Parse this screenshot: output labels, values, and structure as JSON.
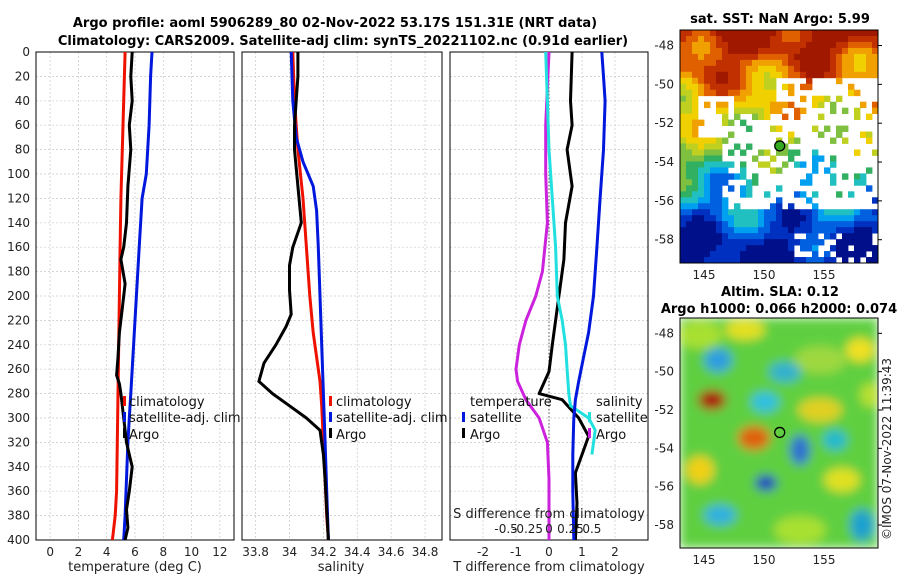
{
  "titles": {
    "line1": "Argo profile: aoml 5906289_80 02-Nov-2022 53.17S 151.31E (NRT data)",
    "line2": "Climatology: CARS2009. Satellite-adj clim: synTS_20221102.nc (0.91d earlier)"
  },
  "colors": {
    "climatology": "#ee1100",
    "satellite": "#0018dd",
    "argo": "#000000",
    "t_sat_diff": "#cc22dd",
    "s_sat_diff": "#22e0e0"
  },
  "chart_data": [
    {
      "type": "line",
      "id": "temperature",
      "xlabel": "temperature (deg C)",
      "xlim": [
        -1,
        13
      ],
      "ylim": [
        400,
        0
      ],
      "xticks": [
        0,
        2,
        4,
        6,
        8,
        10,
        12
      ],
      "yticks": [
        0,
        20,
        40,
        60,
        80,
        100,
        120,
        140,
        160,
        180,
        200,
        220,
        240,
        260,
        280,
        300,
        320,
        340,
        360,
        380,
        400
      ],
      "legend": [
        "climatology",
        "satellite-adj. clim",
        "Argo"
      ],
      "series": [
        {
          "name": "climatology",
          "color": "#ee1100",
          "x": [
            5.3,
            5.2,
            5.1,
            5.0,
            4.95,
            4.9,
            4.85,
            4.8,
            4.75,
            4.7,
            4.6,
            4.4
          ],
          "y": [
            0,
            40,
            80,
            120,
            160,
            200,
            240,
            280,
            320,
            360,
            380,
            400
          ]
        },
        {
          "name": "satellite-adj. clim",
          "color": "#0018dd",
          "x": [
            7.2,
            7.1,
            7.0,
            6.9,
            6.8,
            6.5,
            6.3,
            6.1,
            5.9,
            5.7,
            5.6,
            5.5,
            5.4,
            5.3,
            5.2
          ],
          "y": [
            0,
            20,
            60,
            80,
            100,
            120,
            160,
            200,
            240,
            280,
            300,
            320,
            350,
            380,
            400
          ]
        },
        {
          "name": "Argo",
          "color": "#000000",
          "x": [
            5.8,
            5.7,
            5.8,
            5.6,
            5.7,
            5.5,
            5.4,
            5.2,
            5.0,
            5.3,
            5.1,
            4.9,
            4.8,
            4.7,
            4.9,
            5.0,
            5.2,
            5.4,
            5.6,
            5.8,
            5.6,
            5.4,
            5.5,
            5.3
          ],
          "y": [
            0,
            20,
            40,
            60,
            80,
            110,
            140,
            160,
            170,
            190,
            210,
            230,
            250,
            265,
            272,
            280,
            300,
            320,
            330,
            340,
            360,
            375,
            390,
            400
          ]
        }
      ]
    },
    {
      "type": "line",
      "id": "salinity",
      "xlabel": "salinity",
      "xlim": [
        33.72,
        34.9
      ],
      "ylim": [
        400,
        0
      ],
      "xticks": [
        33.8,
        34,
        34.2,
        34.4,
        34.6,
        34.8
      ],
      "xticklabels": [
        "33.8",
        "34",
        "34.2",
        "34.4",
        "34.6",
        "34.8"
      ],
      "legend": [
        "climatology",
        "satellite-adj. clim",
        "Argo"
      ],
      "series": [
        {
          "name": "climatology",
          "color": "#ee1100",
          "x": [
            34.02,
            34.03,
            34.05,
            34.08,
            34.1,
            34.12,
            34.14,
            34.16,
            34.18,
            34.19,
            34.2,
            34.21,
            34.22,
            34.23
          ],
          "y": [
            0,
            40,
            80,
            120,
            160,
            200,
            230,
            250,
            270,
            290,
            320,
            350,
            380,
            400
          ]
        },
        {
          "name": "satellite-adj. clim",
          "color": "#0018dd",
          "x": [
            34.01,
            34.02,
            34.04,
            34.08,
            34.11,
            34.14,
            34.16,
            34.17,
            34.18,
            34.19,
            34.2,
            34.21,
            34.22,
            34.23
          ],
          "y": [
            0,
            40,
            70,
            90,
            100,
            110,
            130,
            160,
            200,
            240,
            280,
            320,
            360,
            400
          ]
        },
        {
          "name": "Argo",
          "color": "#000000",
          "x": [
            34.05,
            34.05,
            34.04,
            34.03,
            34.03,
            34.05,
            34.07,
            34.02,
            34.0,
            34.0,
            34.01,
            33.98,
            33.92,
            33.85,
            33.82,
            33.9,
            34.0,
            34.1,
            34.18,
            34.2,
            34.21,
            34.22,
            34.23
          ],
          "y": [
            0,
            20,
            40,
            60,
            80,
            110,
            140,
            160,
            175,
            195,
            215,
            225,
            240,
            255,
            270,
            280,
            290,
            300,
            310,
            330,
            350,
            375,
            400
          ]
        }
      ]
    },
    {
      "type": "line",
      "id": "difference",
      "xlabel": "T difference from climatology",
      "xlabel_top": "S difference from climatology",
      "xlim": [
        -3,
        3
      ],
      "ylim": [
        400,
        0
      ],
      "xticks": [
        -2,
        -1,
        0,
        1,
        2
      ],
      "xticklabels": [
        "-2",
        "-1",
        "0",
        "1",
        "2"
      ],
      "s_ticklabels": [
        "-0.5",
        "-0.25",
        "0",
        "0.25",
        "0.5"
      ],
      "legend_left_title": "temperature",
      "legend_right_title": "salinity",
      "legend": [
        "satellite",
        "Argo"
      ],
      "series": [
        {
          "name": "T satellite",
          "color": "#cc22dd",
          "x": [
            0.0,
            -0.1,
            -0.1,
            -0.05,
            -0.2,
            -0.4,
            -0.7,
            -0.9,
            -1.0,
            -0.95,
            -0.7,
            -0.3,
            -0.05,
            0.0,
            0.0
          ],
          "y": [
            0,
            60,
            100,
            140,
            180,
            200,
            220,
            240,
            260,
            270,
            285,
            300,
            320,
            350,
            400
          ]
        },
        {
          "name": "T Argo",
          "color": "#000000",
          "x": [
            0.7,
            0.65,
            0.7,
            0.55,
            0.7,
            0.5,
            0.45,
            0.3,
            0.1,
            0.0,
            -0.3,
            0.4,
            0.9,
            1.2,
            1.0,
            0.8,
            0.85,
            0.8
          ],
          "y": [
            0,
            40,
            60,
            80,
            110,
            140,
            170,
            200,
            240,
            262,
            280,
            285,
            300,
            315,
            330,
            345,
            370,
            400
          ]
        },
        {
          "name": "S satellite",
          "color": "#22e0e0",
          "x": [
            -0.1,
            -0.05,
            0.0,
            0.1,
            0.2,
            0.25,
            0.4,
            0.5,
            0.55,
            0.6,
            0.65,
            1.2,
            1.4,
            1.3
          ],
          "y": [
            0,
            40,
            80,
            120,
            160,
            200,
            220,
            240,
            260,
            280,
            290,
            300,
            310,
            330
          ]
        },
        {
          "name": "S Argo",
          "color": "#0018dd",
          "x": [
            1.6,
            1.65,
            1.7,
            1.65,
            1.55,
            1.45,
            1.35,
            1.2,
            1.05,
            0.9,
            0.8,
            0.75,
            0.72,
            0.72,
            0.75
          ],
          "y": [
            0,
            20,
            40,
            80,
            120,
            160,
            200,
            230,
            250,
            270,
            285,
            300,
            330,
            360,
            400
          ]
        }
      ]
    },
    {
      "type": "heatmap",
      "id": "sst-map",
      "title": "sat. SST: NaN Argo: 5.99",
      "xticks": [
        145,
        150,
        155
      ],
      "yticks": [
        -48,
        -50,
        -52,
        -54,
        -56,
        -58
      ],
      "marker": {
        "lon": 151.31,
        "lat": -53.17
      }
    },
    {
      "type": "heatmap",
      "id": "sla-map",
      "title_line1": "Altim. SLA: 0.12",
      "title_line2": "Argo h1000: 0.066 h2000: 0.074",
      "xticks": [
        145,
        150,
        155
      ],
      "yticks": [
        -48,
        -50,
        -52,
        -54,
        -56,
        -58
      ],
      "marker": {
        "lon": 151.31,
        "lat": -53.17
      }
    }
  ],
  "credit": "©IMOS 07-Nov-2022 11:39:43"
}
